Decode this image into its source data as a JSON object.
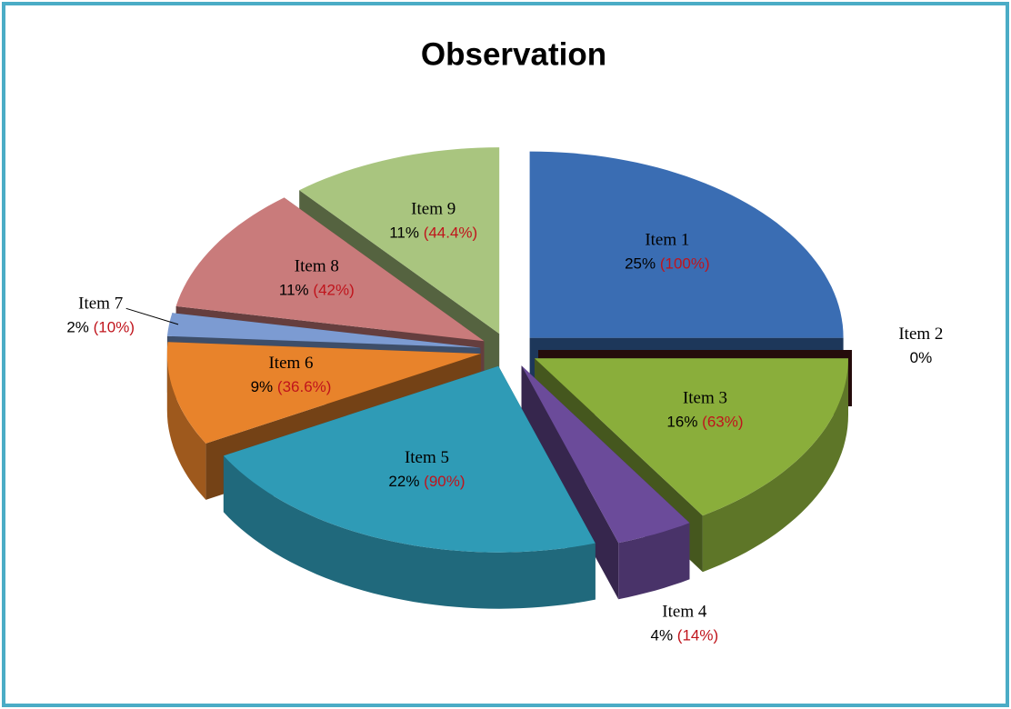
{
  "chart_data": {
    "type": "pie3d",
    "title": "Observation",
    "categories": [
      "Item 1",
      "Item 2",
      "Item 3",
      "Item 4",
      "Item 5",
      "Item 6",
      "Item 7",
      "Item 8",
      "Item 9"
    ],
    "values": [
      25,
      0,
      16,
      4,
      22,
      9,
      2,
      11,
      11
    ],
    "value_labels": [
      "25%",
      "0%",
      "16%",
      "4%",
      "22%",
      "9%",
      "2%",
      "11%",
      "11%"
    ],
    "annotations": [
      "(100%)",
      null,
      "(63%)",
      "(14%)",
      "(90%)",
      "(36.6%)",
      "(10%)",
      "(42%)",
      "(44.4%)"
    ],
    "colors": [
      "#3a6db3",
      "#4a1616",
      "#8aae3b",
      "#6b4b9a",
      "#2f9bb6",
      "#e8832b",
      "#7c9bd2",
      "#c97b7b",
      "#a9c57f"
    ]
  }
}
